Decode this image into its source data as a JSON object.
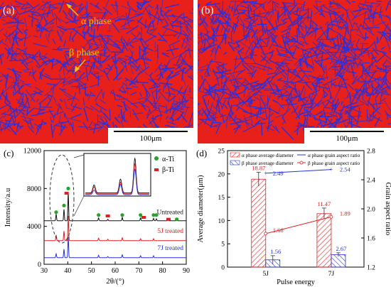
{
  "panel_a": {
    "label": "(a)",
    "annot_alpha": "α phase",
    "annot_beta": "β phase",
    "scale_bar": "100μm",
    "colors": {
      "matrix": "#e8201c",
      "needles": "#2b2fd8",
      "annot": "#f2c21a"
    }
  },
  "panel_b": {
    "label": "(b)",
    "scale_bar": "100μm"
  },
  "chart_data": [
    {
      "panel": "c",
      "type": "line",
      "label": "(c)",
      "xlabel": "2θ/(°)",
      "ylabel": "Intensity/a.u",
      "xlim": [
        30,
        90
      ],
      "ylim": [
        0,
        12000
      ],
      "xticks": [
        "30",
        "40",
        "50",
        "60",
        "70",
        "80",
        "90"
      ],
      "yticks": [
        "0",
        "4000",
        "8000",
        "12000"
      ],
      "legend": [
        {
          "name": "α-Ti",
          "marker": "green-circle",
          "color": "#2aa12a"
        },
        {
          "name": "β-Ti",
          "marker": "red-square",
          "color": "#e02020"
        }
      ],
      "series": [
        {
          "name": "Untreated",
          "color": "#111111",
          "baseline": 4600,
          "peaks": [
            [
              35.1,
              700
            ],
            [
              38.4,
              1200
            ],
            [
              40.2,
              3000
            ],
            [
              53.0,
              300
            ],
            [
              56.9,
              150
            ],
            [
              63.0,
              350
            ],
            [
              70.7,
              300
            ],
            [
              76.2,
              250
            ],
            [
              77.4,
              200
            ],
            [
              82.3,
              120
            ],
            [
              86.0,
              100
            ]
          ]
        },
        {
          "name": "5J treated",
          "color": "#e02020",
          "baseline": 2500,
          "peaks": [
            [
              35.1,
              600
            ],
            [
              38.4,
              1000
            ],
            [
              40.2,
              2600
            ],
            [
              53.0,
              250
            ],
            [
              56.9,
              150
            ],
            [
              63.0,
              300
            ],
            [
              70.7,
              200
            ],
            [
              76.2,
              200
            ]
          ]
        },
        {
          "name": "7J treated",
          "color": "#2233dd",
          "baseline": 700,
          "peaks": [
            [
              35.1,
              400
            ],
            [
              38.4,
              900
            ],
            [
              40.2,
              2200
            ],
            [
              53.0,
              250
            ],
            [
              56.9,
              120
            ],
            [
              63.0,
              300
            ],
            [
              70.7,
              200
            ],
            [
              76.2,
              200
            ]
          ]
        }
      ],
      "alpha_markers": [
        [
          35.1,
          5500
        ],
        [
          38.4,
          6200
        ],
        [
          40.2,
          8000
        ],
        [
          53.0,
          5200
        ],
        [
          63.0,
          5200
        ],
        [
          70.7,
          5200
        ],
        [
          76.2,
          5200
        ],
        [
          77.4,
          5200
        ],
        [
          86.0,
          4750
        ]
      ],
      "beta_markers": [
        [
          39.5,
          7500
        ],
        [
          56.9,
          5100
        ],
        [
          72.0,
          4950
        ],
        [
          82.5,
          4750
        ]
      ]
    },
    {
      "panel": "d",
      "type": "bar",
      "label": "(d)",
      "xlabel": "Pulse energy",
      "ylabel": "Average diameter(μm)",
      "y2label": "Grain aspect ratio",
      "categories": [
        "5J",
        "7J"
      ],
      "ylim": [
        0,
        25
      ],
      "y2lim": [
        1.2,
        2.8
      ],
      "yticks": [
        "0",
        "5",
        "10",
        "15",
        "20",
        "25"
      ],
      "y2ticks": [
        "1.2",
        "1.6",
        "2.0",
        "2.4",
        "2.8"
      ],
      "legend": {
        "alpha_diam": "α phase average diameter",
        "beta_diam": "β phase average diameter",
        "alpha_ratio": "α phase grain aspect ratio",
        "beta_ratio": "β phase grain aspect ratio"
      },
      "bar_series": [
        {
          "name": "α phase average diameter",
          "values": [
            18.87,
            11.47
          ],
          "labels": [
            "18.87",
            "11.47"
          ],
          "errors": [
            1.5,
            1.2
          ],
          "color": "#e02020"
        },
        {
          "name": "β phase average diameter",
          "values": [
            1.56,
            2.67
          ],
          "labels": [
            "1.56",
            "2.67"
          ],
          "errors": [
            0.9,
            0.4
          ],
          "color": "#2233dd"
        }
      ],
      "line_series": [
        {
          "name": "α phase grain aspect ratio",
          "values": [
            2.49,
            2.54
          ],
          "labels": [
            "2.49",
            "2.54"
          ],
          "color": "#2233dd"
        },
        {
          "name": "β phase grain aspect ratio",
          "values": [
            1.66,
            1.89
          ],
          "labels": [
            "1.66",
            "1.89"
          ],
          "color": "#e02020"
        }
      ]
    }
  ]
}
